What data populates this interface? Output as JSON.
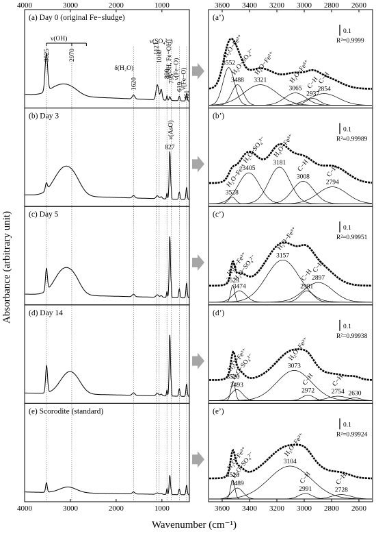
{
  "figure": {
    "ylabel": "Absorbance (arbitrary unit)",
    "xlabel": "Wavenumber (cm⁻¹)",
    "left_ticks": [
      "4000",
      "3000",
      "2000",
      "1000"
    ],
    "right_ticks": [
      "3600",
      "3400",
      "3200",
      "3000",
      "2800",
      "2600"
    ],
    "scale_bar": "0.1"
  },
  "chart_data": [
    {
      "type": "line",
      "group": "left",
      "xlabel": "Wavenumber (cm⁻¹)",
      "ylabel": "Absorbance (arbitrary unit)",
      "xlim": [
        4000,
        400
      ],
      "x_reversed": true,
      "title_annotations": {
        "OH_stretch": "ν(OH)",
        "water_bend": "δ(H₂O)",
        "sulfate": "ν(SO₄²⁻)",
        "oh_fe": "ν(OH, Fe−OH)",
        "fe_o_1": "ν(Fe−O)",
        "fe_o_2": "ν(Fe−O)",
        "aso": "ν(AsO)"
      },
      "reference_lines": [
        "3525",
        "2970",
        "1620",
        "1121",
        "1060",
        "890",
        "795",
        "619",
        "461"
      ],
      "panels": [
        {
          "label": "(a) Day 0 (original Fe−sludge)",
          "peaks_x": [
            3525,
            2970,
            1620,
            1121,
            1060,
            890,
            795,
            619,
            461
          ]
        },
        {
          "label": "(b) Day 3",
          "peak_label": "827"
        },
        {
          "label": "(c) Day 5"
        },
        {
          "label": "(d) Day 14"
        },
        {
          "label": "(e) Scorodite (standard)"
        }
      ]
    },
    {
      "type": "line",
      "group": "right",
      "xlim": [
        3700,
        2500
      ],
      "x_reversed": true,
      "ylabel": "Absorbance (arbitrary unit)",
      "panels": [
        {
          "label": "(a’)",
          "r2": "R²=0.9999",
          "components": [
            {
              "center": "3552",
              "name": "H₂O−Fe³⁺"
            },
            {
              "center": "3488",
              "name": "H₂O−SO₄²⁻"
            },
            {
              "center": "3321",
              "name": "H₂O−Fe³⁺"
            },
            {
              "center": "3065",
              "name": "H₂O−Fe³⁺"
            },
            {
              "center": "2937",
              "name": "C−H"
            },
            {
              "center": "2854",
              "name": "C−H"
            }
          ]
        },
        {
          "label": "(b’)",
          "r2": "R²=0.99989",
          "components": [
            {
              "center": "3528",
              "name": "H₂O−Fe³⁺"
            },
            {
              "center": "3405",
              "name": "H₂O−SO₄²⁻"
            },
            {
              "center": "3181",
              "name": "H₂O−Fe³⁺"
            },
            {
              "center": "3008",
              "name": "C−H"
            },
            {
              "center": "2794",
              "name": "C−H"
            }
          ]
        },
        {
          "label": "(c’)",
          "r2": "R²=0.99951",
          "components": [
            {
              "center": "3523",
              "name": "H₂O−Fe³⁺"
            },
            {
              "center": "3474",
              "name": "H₂O−SO₄²⁻"
            },
            {
              "center": "3157",
              "name": "H₂O−Fe³⁺"
            },
            {
              "center": "2981",
              "name": "C−H"
            },
            {
              "center": "2897",
              "name": "C−H"
            }
          ]
        },
        {
          "label": "(d’)",
          "r2": "R²=0.99938",
          "components": [
            {
              "center": "3520",
              "name": "H₂O−Fe³⁺"
            },
            {
              "center": "3493",
              "name": "H₂O−SO₄²⁻"
            },
            {
              "center": "3073",
              "name": "H₂O−Fe³⁺"
            },
            {
              "center": "2972",
              "name": "C−H"
            },
            {
              "center": "2754",
              "name": "C−H"
            },
            {
              "center": "2630",
              "name": ""
            }
          ]
        },
        {
          "label": "(e’)",
          "r2": "R²=0.99924",
          "components": [
            {
              "center": "3523",
              "name": "H₂O−Fe³⁺"
            },
            {
              "center": "3489",
              "name": "H₂O−SO₄²⁻"
            },
            {
              "center": "3104",
              "name": "H₂O−Fe³⁺"
            },
            {
              "center": "2991",
              "name": "C−H"
            },
            {
              "center": "2728",
              "name": "C−H"
            }
          ]
        }
      ]
    }
  ]
}
